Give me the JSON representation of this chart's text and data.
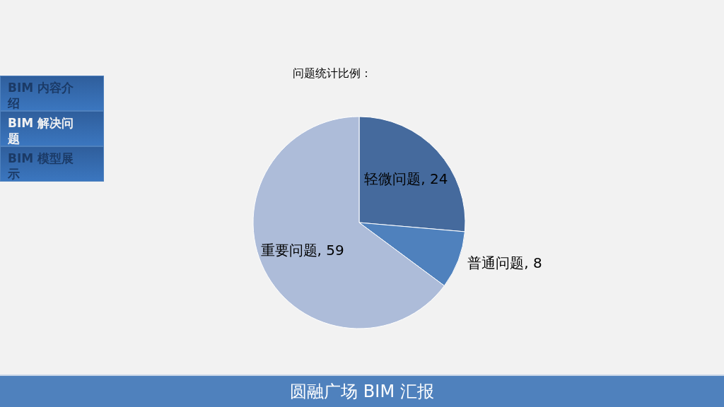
{
  "chart_data": {
    "type": "pie",
    "title": "问题统计比例：",
    "categories": [
      "轻微问题",
      "普通问题",
      "重要问题"
    ],
    "values": [
      24,
      8,
      59
    ],
    "value_labels": [
      ", 24",
      ", 8",
      ", 59"
    ],
    "colors": [
      "#456a9d",
      "#4f81bd",
      "#adbcd9"
    ],
    "annotations": [
      "BIM 内容介绍",
      "BIM 解决问题",
      "BIM 模型展示",
      "圆融广场 BIM 汇报"
    ]
  }
}
